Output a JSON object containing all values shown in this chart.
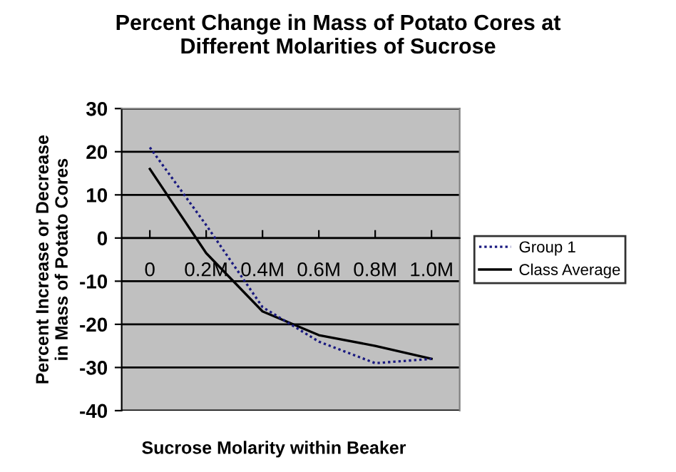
{
  "chart_data": {
    "type": "line",
    "title": "Percent Change in Mass of Potato Cores at\nDifferent Molarities of Sucrose",
    "xlabel": "Sucrose Molarity within Beaker",
    "ylabel": "Percent Increase or Decrease\nin Mass of Potato Cores",
    "categories": [
      "0",
      "0.2M",
      "0.4M",
      "0.6M",
      "0.8M",
      "1.0M"
    ],
    "series": [
      {
        "name": "Group 1",
        "color": "#1a1a80",
        "line_style": "dotted",
        "values": [
          21,
          3,
          -16,
          -24,
          -29,
          -28
        ]
      },
      {
        "name": "Class Average",
        "color": "#000000",
        "line_style": "solid",
        "values": [
          16,
          -3.5,
          -17,
          -22.5,
          -25,
          -28
        ]
      }
    ],
    "ylim": [
      -40,
      30
    ],
    "yticks": [
      -40,
      -30,
      -20,
      -10,
      0,
      10,
      20,
      30
    ],
    "grid": "y",
    "legend": "right",
    "marker": "none"
  }
}
